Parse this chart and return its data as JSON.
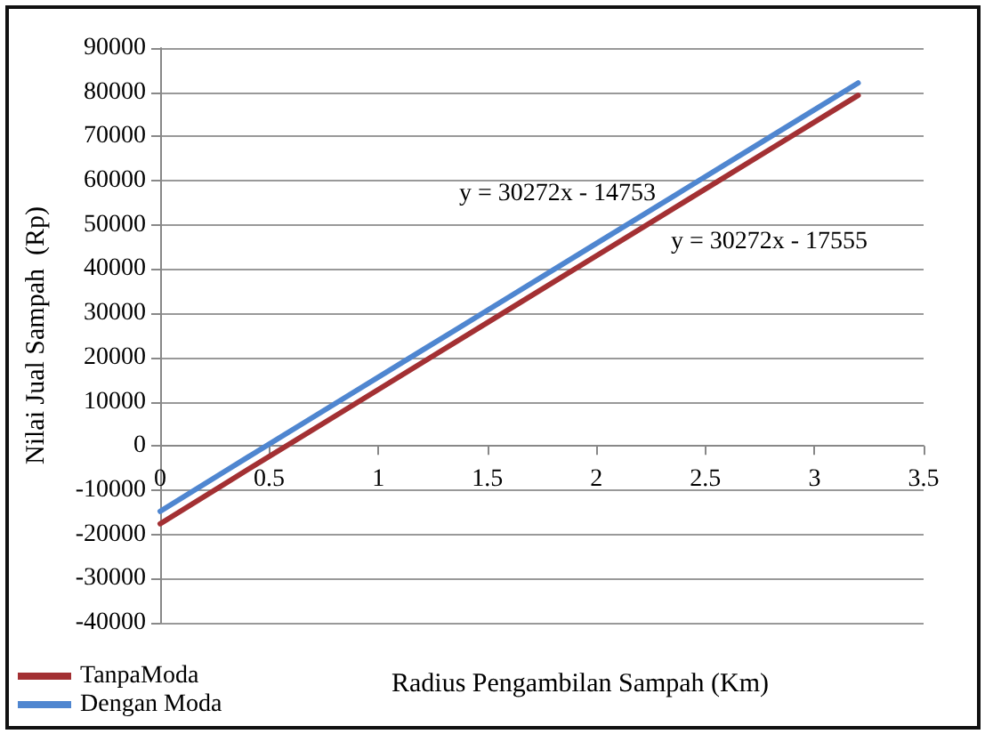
{
  "chart_data": {
    "type": "line",
    "xlabel": "Radius Pengambilan Sampah (Km)",
    "ylabel": "Nilai Jual Sampah  (Rp)",
    "x": [
      0,
      0.4,
      0.8,
      1.2,
      1.6,
      2.0,
      2.4,
      2.8,
      3.2
    ],
    "series": [
      {
        "name": "TanpaModa",
        "color": "#a33033",
        "values": [
          -17600,
          -5400,
          6700,
          18800,
          30900,
          43000,
          55100,
          67200,
          79300
        ]
      },
      {
        "name": "Dengan Moda",
        "color": "#4f86d0",
        "values": [
          -14800,
          -2600,
          9500,
          21600,
          33700,
          45800,
          57900,
          70000,
          82100
        ]
      }
    ],
    "xlim": [
      0,
      3.5
    ],
    "xticks": [
      0,
      0.5,
      1,
      1.5,
      2,
      2.5,
      3,
      3.5
    ],
    "ylim": [
      -40000,
      90000
    ],
    "yticks": [
      -40000,
      -30000,
      -20000,
      -10000,
      0,
      10000,
      20000,
      30000,
      40000,
      50000,
      60000,
      70000,
      80000,
      90000
    ],
    "annotations": [
      "y = 30272x - 14753",
      "y = 30272x - 17555"
    ],
    "grid": "y",
    "legend": "bottom left",
    "marker": "none",
    "line_style": "solid"
  }
}
